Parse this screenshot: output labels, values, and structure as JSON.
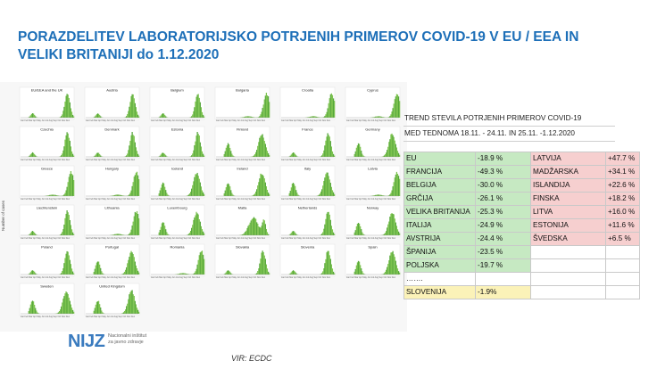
{
  "title": {
    "line1": "PORAZDELITEV LABORATORIJSKO POTRJENIH PRIMEROV COVID-19 V EU / EEA IN",
    "line2": "VELIKI BRITANIJI do 1.12.2020"
  },
  "chart_data": {
    "type": "area",
    "ylabel": "Number of cases",
    "xticks": [
      "Jan",
      "Feb",
      "Mar",
      "Apr",
      "May",
      "Jun",
      "Jul",
      "Aug",
      "Sep",
      "Oct",
      "Nov",
      "Dec"
    ],
    "panels": [
      {
        "name": "EU/EEA and the UK",
        "shape": "w2"
      },
      {
        "name": "Austria",
        "shape": "w2"
      },
      {
        "name": "Belgium",
        "shape": "w2"
      },
      {
        "name": "Bulgaria",
        "shape": "late"
      },
      {
        "name": "Croatia",
        "shape": "late"
      },
      {
        "name": "Cyprus",
        "shape": "late"
      },
      {
        "name": "Czechia",
        "shape": "w2"
      },
      {
        "name": "Denmark",
        "shape": "w2"
      },
      {
        "name": "Estonia",
        "shape": "w2"
      },
      {
        "name": "Finland",
        "shape": "w1w2"
      },
      {
        "name": "France",
        "shape": "w2"
      },
      {
        "name": "Germany",
        "shape": "w1w2"
      },
      {
        "name": "Greece",
        "shape": "late"
      },
      {
        "name": "Hungary",
        "shape": "late"
      },
      {
        "name": "Iceland",
        "shape": "w1w2"
      },
      {
        "name": "Ireland",
        "shape": "w1w2"
      },
      {
        "name": "Italy",
        "shape": "w1w2"
      },
      {
        "name": "Latvia",
        "shape": "late"
      },
      {
        "name": "Liechtenstein",
        "shape": "w2"
      },
      {
        "name": "Lithuania",
        "shape": "late"
      },
      {
        "name": "Luxembourg",
        "shape": "w1w2"
      },
      {
        "name": "Malta",
        "shape": "mid"
      },
      {
        "name": "Netherlands",
        "shape": "w2"
      },
      {
        "name": "Norway",
        "shape": "w1w2"
      },
      {
        "name": "Poland",
        "shape": "w2"
      },
      {
        "name": "Portugal",
        "shape": "w1w2"
      },
      {
        "name": "Romania",
        "shape": "late"
      },
      {
        "name": "Slovakia",
        "shape": "w2"
      },
      {
        "name": "Slovenia",
        "shape": "w2"
      },
      {
        "name": "Spain",
        "shape": "w1w2"
      },
      {
        "name": "Sweden",
        "shape": "w1w2"
      },
      {
        "name": "United Kingdom",
        "shape": "w1w2"
      }
    ],
    "colors": {
      "area": "#7cc24f",
      "area_dark": "#55a63a",
      "bg": "#ffffff"
    }
  },
  "trend": {
    "head1": "TREND STEVILA POTRJENIH PRIMEROV COVID-19",
    "head2": "MED TEDNOMA 18.11. - 24.11. IN  25.11. -1.12.2020",
    "rows": [
      {
        "c1": "EU",
        "v1": "-18.9 %",
        "c2": "LATVIJA",
        "v2": "+47.7 %",
        "k1": "g",
        "k2": "r"
      },
      {
        "c1": "FRANCIJA",
        "v1": "-49.3 %",
        "c2": "MADŽARSKA",
        "v2": "+34.1 %",
        "k1": "g",
        "k2": "r"
      },
      {
        "c1": "BELGIJA",
        "v1": "-30.0 %",
        "c2": "ISLANDIJA",
        "v2": "+22.6 %",
        "k1": "g",
        "k2": "r"
      },
      {
        "c1": "GRČIJA",
        "v1": "-26.1 %",
        "c2": "FINSKA",
        "v2": "+18.2 %",
        "k1": "g",
        "k2": "r"
      },
      {
        "c1": "VELIKA BRITANIJA",
        "v1": "-25.3 %",
        "c2": "LITVA",
        "v2": "+16.0 %",
        "k1": "g",
        "k2": "r"
      },
      {
        "c1": "ITALIJA",
        "v1": "-24.9 %",
        "c2": "ESTONIJA",
        "v2": "+11.6 %",
        "k1": "g",
        "k2": "r"
      },
      {
        "c1": "AVSTRIJA",
        "v1": "-24.4 %",
        "c2": "ŠVEDSKA",
        "v2": "+6.5 %",
        "k1": "g",
        "k2": "r"
      },
      {
        "c1": "ŠPANIJA",
        "v1": "-23.5 %",
        "c2": "",
        "v2": "",
        "k1": "g",
        "k2": ""
      },
      {
        "c1": "POLJSKA",
        "v1": "-19.7 %",
        "c2": "",
        "v2": "",
        "k1": "g",
        "k2": ""
      },
      {
        "c1": "…….",
        "v1": "",
        "c2": "",
        "v2": "",
        "k1": "",
        "k2": ""
      },
      {
        "c1": "SLOVENIJA",
        "v1": "-1.9%",
        "c2": "",
        "v2": "",
        "k1": "y",
        "k2": ""
      }
    ]
  },
  "logo": {
    "text": "NIJZ",
    "sub1": "Nacionalni inštitut",
    "sub2": "za javno zdravje"
  },
  "source": "VIR: ECDC"
}
